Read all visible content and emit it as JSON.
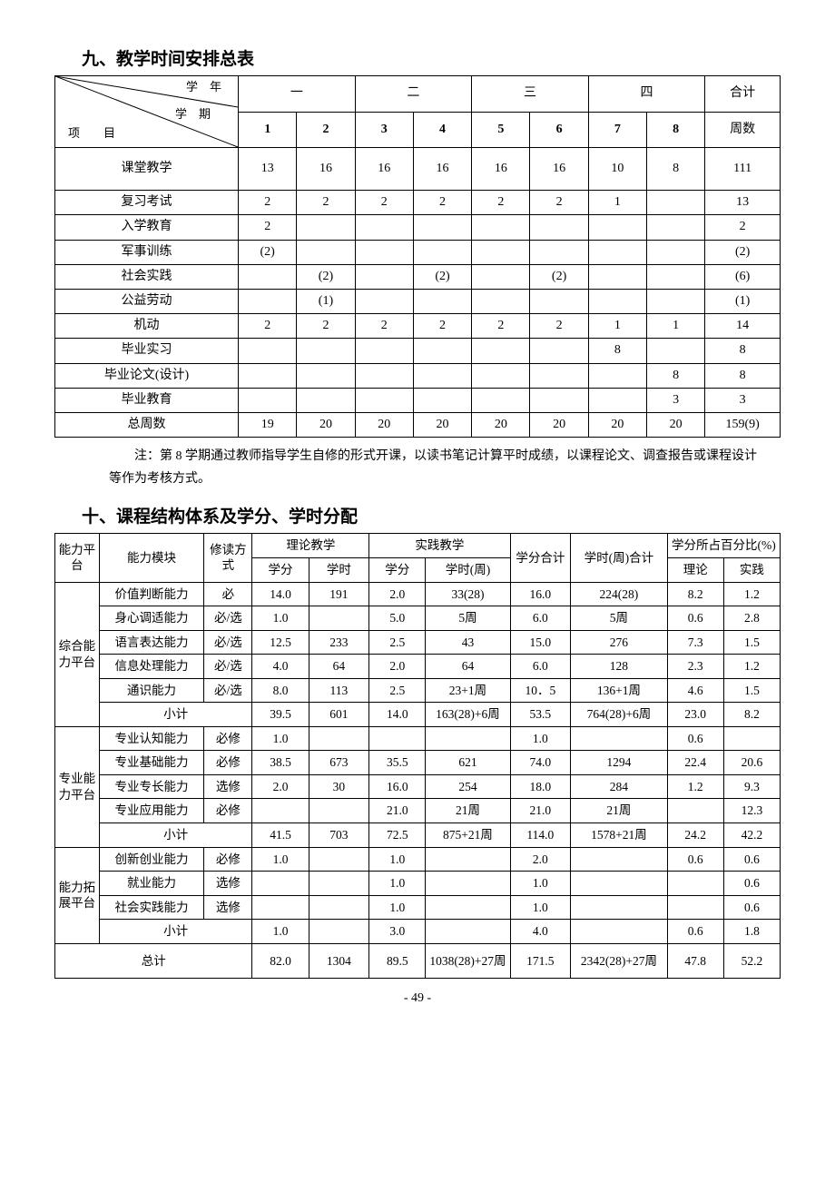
{
  "section9": {
    "title": "九、教学时间安排总表",
    "diag": {
      "year": "学　年",
      "term": "学　期",
      "item": "项　　目"
    },
    "years": [
      "一",
      "二",
      "三",
      "四"
    ],
    "total_header": "合计",
    "terms": [
      "1",
      "2",
      "3",
      "4",
      "5",
      "6",
      "7",
      "8"
    ],
    "weeks_header": "周数",
    "rows": [
      {
        "label": "课堂教学",
        "cells": [
          "13",
          "16",
          "16",
          "16",
          "16",
          "16",
          "10",
          "8"
        ],
        "total": "111"
      },
      {
        "label": "复习考试",
        "cells": [
          "2",
          "2",
          "2",
          "2",
          "2",
          "2",
          "1",
          ""
        ],
        "total": "13"
      },
      {
        "label": "入学教育",
        "cells": [
          "2",
          "",
          "",
          "",
          "",
          "",
          "",
          ""
        ],
        "total": "2"
      },
      {
        "label": "军事训练",
        "cells": [
          "(2)",
          "",
          "",
          "",
          "",
          "",
          "",
          ""
        ],
        "total": "(2)"
      },
      {
        "label": "社会实践",
        "cells": [
          "",
          "(2)",
          "",
          "(2)",
          "",
          "(2)",
          "",
          ""
        ],
        "total": "(6)"
      },
      {
        "label": "公益劳动",
        "cells": [
          "",
          "(1)",
          "",
          "",
          "",
          "",
          "",
          ""
        ],
        "total": "(1)"
      },
      {
        "label": "机动",
        "cells": [
          "2",
          "2",
          "2",
          "2",
          "2",
          "2",
          "1",
          "1"
        ],
        "total": "14"
      },
      {
        "label": "毕业实习",
        "cells": [
          "",
          "",
          "",
          "",
          "",
          "",
          "8",
          ""
        ],
        "total": "8"
      },
      {
        "label": "毕业论文(设计)",
        "cells": [
          "",
          "",
          "",
          "",
          "",
          "",
          "",
          "8"
        ],
        "total": "8"
      },
      {
        "label": "毕业教育",
        "cells": [
          "",
          "",
          "",
          "",
          "",
          "",
          "",
          "3"
        ],
        "total": "3"
      },
      {
        "label": "总周数",
        "cells": [
          "19",
          "20",
          "20",
          "20",
          "20",
          "20",
          "20",
          "20"
        ],
        "total": "159(9)"
      }
    ],
    "note": "注：第 8 学期通过教师指导学生自修的形式开课，以读书笔记计算平时成绩，以课程论文、调查报告或课程设计等作为考核方式。"
  },
  "section10": {
    "title": "十、课程结构体系及学分、学时分配",
    "headers": {
      "platform": "能力平台",
      "module": "能力模块",
      "mode": "修读方式",
      "theory": "理论教学",
      "practice": "实践教学",
      "credit_total": "学分合计",
      "hour_total": "学时(周)合计",
      "pct": "学分所占百分比(%)",
      "credit": "学分",
      "hour": "学时",
      "hour_week": "学时(周)",
      "th": "理论",
      "pr": "实践"
    },
    "groups": [
      {
        "platform": "综合能力平台",
        "rows": [
          [
            "价值判断能力",
            "必",
            "14.0",
            "191",
            "2.0",
            "33(28)",
            "16.0",
            "224(28)",
            "8.2",
            "1.2"
          ],
          [
            "身心调适能力",
            "必/选",
            "1.0",
            "",
            "5.0",
            "5周",
            "6.0",
            "5周",
            "0.6",
            "2.8"
          ],
          [
            "语言表达能力",
            "必/选",
            "12.5",
            "233",
            "2.5",
            "43",
            "15.0",
            "276",
            "7.3",
            "1.5"
          ],
          [
            "信息处理能力",
            "必/选",
            "4.0",
            "64",
            "2.0",
            "64",
            "6.0",
            "128",
            "2.3",
            "1.2"
          ],
          [
            "通识能力",
            "必/选",
            "8.0",
            "113",
            "2.5",
            "23+1周",
            "10．5",
            "136+1周",
            "4.6",
            "1.5"
          ]
        ],
        "subtotal": [
          "小计",
          "39.5",
          "601",
          "14.0",
          "163(28)+6周",
          "53.5",
          "764(28)+6周",
          "23.0",
          "8.2"
        ]
      },
      {
        "platform": "专业能力平台",
        "rows": [
          [
            "专业认知能力",
            "必修",
            "1.0",
            "",
            "",
            "",
            "1.0",
            "",
            "0.6",
            ""
          ],
          [
            "专业基础能力",
            "必修",
            "38.5",
            "673",
            "35.5",
            "621",
            "74.0",
            "1294",
            "22.4",
            "20.6"
          ],
          [
            "专业专长能力",
            "选修",
            "2.0",
            "30",
            "16.0",
            "254",
            "18.0",
            "284",
            "1.2",
            "9.3"
          ],
          [
            "专业应用能力",
            "必修",
            "",
            "",
            "21.0",
            "21周",
            "21.0",
            "21周",
            "",
            "12.3"
          ]
        ],
        "subtotal": [
          "小计",
          "41.5",
          "703",
          "72.5",
          "875+21周",
          "114.0",
          "1578+21周",
          "24.2",
          "42.2"
        ]
      },
      {
        "platform": "能力拓展平台",
        "rows": [
          [
            "创新创业能力",
            "必修",
            "1.0",
            "",
            "1.0",
            "",
            "2.0",
            "",
            "0.6",
            "0.6"
          ],
          [
            "就业能力",
            "选修",
            "",
            "",
            "1.0",
            "",
            "1.0",
            "",
            "",
            "0.6"
          ],
          [
            "社会实践能力",
            "选修",
            "",
            "",
            "1.0",
            "",
            "1.0",
            "",
            "",
            "0.6"
          ]
        ],
        "subtotal": [
          "小计",
          "1.0",
          "",
          "3.0",
          "",
          "4.0",
          "",
          "0.6",
          "1.8"
        ]
      }
    ],
    "grand_total": [
      "总计",
      "82.0",
      "1304",
      "89.5",
      "1038(28)+27周",
      "171.5",
      "2342(28)+27周",
      "47.8",
      "52.2"
    ]
  },
  "page_number": "- 49 -"
}
